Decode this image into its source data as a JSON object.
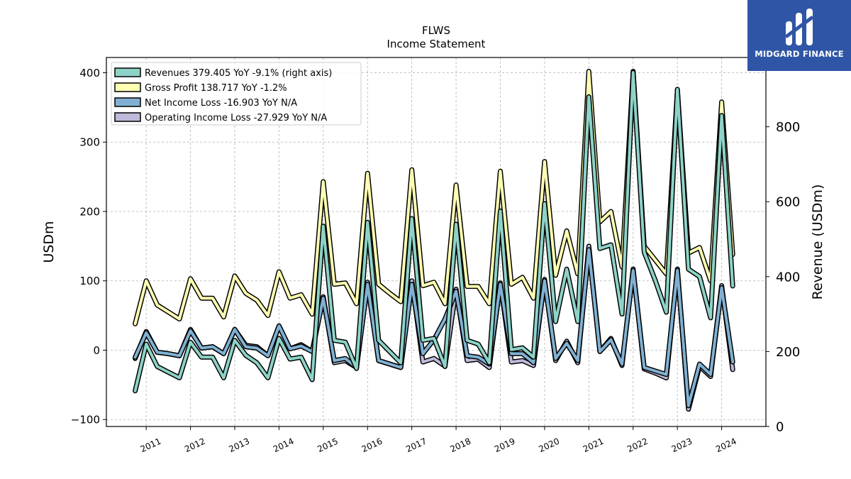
{
  "brand": {
    "name": "MIDGARD FINANCE",
    "bg": "#2f55a6"
  },
  "chart_data": {
    "type": "line",
    "title": "FLWS",
    "subtitle": "Income Statement",
    "ylabel": "USDm",
    "ylabel_right": "Revenue (USDm)",
    "ylim": [
      -110,
      422
    ],
    "ylim_right": [
      0,
      985
    ],
    "yticks": [
      -100,
      0,
      100,
      200,
      300,
      400
    ],
    "yticks_right": [
      0,
      200,
      400,
      600,
      800
    ],
    "ytick_labels": [
      "−100",
      "0",
      "100",
      "200",
      "300",
      "400"
    ],
    "xlim": [
      2010.1,
      2025.0
    ],
    "xticks": [
      2011,
      2012,
      2013,
      2014,
      2015,
      2016,
      2017,
      2018,
      2019,
      2020,
      2021,
      2022,
      2023,
      2024
    ],
    "grid": true,
    "legend_position": "top-left",
    "x": [
      2010.75,
      2011.0,
      2011.25,
      2011.5,
      2011.75,
      2012.0,
      2012.25,
      2012.5,
      2012.75,
      2013.0,
      2013.25,
      2013.5,
      2013.75,
      2014.0,
      2014.25,
      2014.5,
      2014.75,
      2015.0,
      2015.25,
      2015.5,
      2015.75,
      2016.0,
      2016.25,
      2016.5,
      2016.75,
      2017.0,
      2017.25,
      2017.5,
      2017.75,
      2018.0,
      2018.25,
      2018.5,
      2018.75,
      2019.0,
      2019.25,
      2019.5,
      2019.75,
      2020.0,
      2020.25,
      2020.5,
      2020.75,
      2021.0,
      2021.25,
      2021.5,
      2021.75,
      2022.0,
      2022.25,
      2022.5,
      2022.75,
      2023.0,
      2023.25,
      2023.5,
      2023.75,
      2024.0,
      2024.25
    ],
    "series": [
      {
        "name": "Revenues  379.405 YoY -9.1% (right axis)",
        "axis": "right",
        "color": "#8dd3c7",
        "values": [
          95,
          220,
          160,
          145,
          130,
          225,
          185,
          185,
          130,
          230,
          190,
          170,
          130,
          235,
          180,
          185,
          125,
          535,
          230,
          225,
          155,
          545,
          230,
          200,
          170,
          555,
          230,
          235,
          160,
          540,
          230,
          220,
          170,
          575,
          205,
          210,
          185,
          595,
          280,
          420,
          280,
          880,
          475,
          485,
          300,
          945,
          465,
          390,
          305,
          900,
          420,
          400,
          290,
          830,
          375
        ]
      },
      {
        "name": "Gross Profit  138.717 YoY -1.2%",
        "axis": "left",
        "color": "#ffffb3",
        "values": [
          38,
          100,
          65,
          55,
          45,
          103,
          75,
          75,
          48,
          107,
          82,
          72,
          50,
          113,
          75,
          80,
          52,
          243,
          95,
          97,
          67,
          255,
          95,
          82,
          70,
          260,
          93,
          98,
          67,
          238,
          92,
          92,
          67,
          258,
          95,
          105,
          75,
          272,
          108,
          172,
          110,
          402,
          185,
          200,
          120,
          402,
          150,
          130,
          110,
          375,
          140,
          148,
          100,
          358,
          138
        ]
      },
      {
        "name": "Net Income Loss  -16.903 YoY N/A",
        "axis": "left",
        "color": "#80b1d3",
        "values": [
          -10,
          25,
          -3,
          -5,
          -8,
          28,
          3,
          5,
          -5,
          30,
          5,
          3,
          -8,
          35,
          2,
          6,
          -2,
          75,
          -15,
          -12,
          -25,
          95,
          -15,
          -20,
          -25,
          95,
          -5,
          15,
          45,
          85,
          -8,
          -10,
          -20,
          95,
          -5,
          -5,
          -18,
          100,
          -12,
          10,
          -15,
          145,
          -2,
          15,
          -20,
          115,
          -25,
          -30,
          -35,
          115,
          -80,
          -20,
          -35,
          90,
          -17
        ]
      },
      {
        "name": "Operating Income Loss  -27.929 YoY N/A",
        "axis": "left",
        "color": "#bebada",
        "values": [
          -12,
          27,
          -3,
          -5,
          -8,
          30,
          3,
          5,
          -5,
          30,
          7,
          5,
          -8,
          35,
          2,
          8,
          -2,
          77,
          -18,
          -15,
          -25,
          98,
          -15,
          -20,
          -25,
          100,
          -17,
          -12,
          -23,
          88,
          -15,
          -13,
          -25,
          97,
          -17,
          -15,
          -22,
          102,
          -15,
          13,
          -18,
          150,
          -2,
          17,
          -22,
          117,
          -27,
          -33,
          -40,
          117,
          -85,
          -23,
          -38,
          93,
          -28
        ]
      }
    ]
  }
}
